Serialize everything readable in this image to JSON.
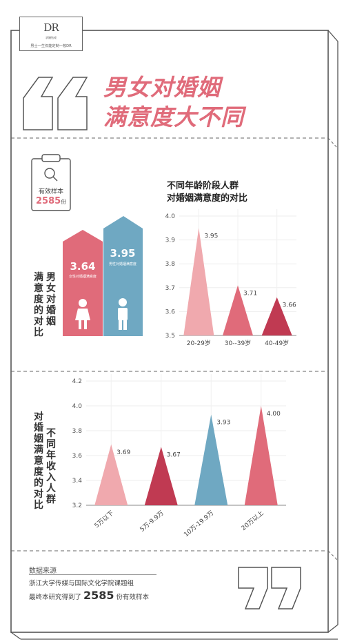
{
  "brand": {
    "mark": "DR",
    "sub": "求婚钻戒",
    "slogan": "男士一生仅能定制一枚DR"
  },
  "title": {
    "line1": "男女对婚姻",
    "line2": "满意度大不同"
  },
  "sample": {
    "label": "有效样本",
    "count": "2585",
    "unit": "份"
  },
  "gender_compare": {
    "vertical_label_1": "满意度的对比",
    "vertical_label_2": "男女对婚姻",
    "female": {
      "value": "3.64",
      "label": "女性对婚姻满意度",
      "color": "#e06b7a"
    },
    "male": {
      "value": "3.95",
      "label": "男性对婚姻满意度",
      "color": "#6fa8c2"
    }
  },
  "source": {
    "heading": "数据来源",
    "org": "浙江大学传媒与国际文化学院课题组",
    "count_prefix": "最终本研究得到了",
    "count_number": "2585",
    "count_suffix": "份有效样本"
  },
  "colors": {
    "accent": "#e06b7a",
    "light_pink": "#f0a9ae",
    "dark_red": "#c03a52",
    "blue": "#6fa8c2"
  },
  "chart_data": [
    {
      "type": "bar",
      "title_line1": "不同年龄阶段人群",
      "title_line2": "对婚姻满意度的对比",
      "categories": [
        "20-29岁",
        "30--39岁",
        "40-49岁"
      ],
      "values": [
        3.95,
        3.71,
        3.66
      ],
      "value_labels": [
        "3.95",
        "3.71",
        "3.66"
      ],
      "colors": [
        "#f0a9ae",
        "#e06b7a",
        "#c03a52"
      ],
      "yticks": [
        "4.0",
        "3.9",
        "3.8",
        "3.7",
        "3.6",
        "3.5"
      ],
      "ylim": [
        3.5,
        4.0
      ],
      "grid": true
    },
    {
      "type": "bar",
      "vertical_label_1": "对婚姻满意度的对比",
      "vertical_label_2": "不同年收入人群",
      "categories": [
        "5万以下",
        "5万-9.9万",
        "10万-19.9万",
        "20万以上"
      ],
      "values": [
        3.69,
        3.67,
        3.93,
        4.0
      ],
      "value_labels": [
        "3.69",
        "3.67",
        "3.93",
        "4.00"
      ],
      "colors": [
        "#f0a9ae",
        "#c03a52",
        "#6fa8c2",
        "#e06b7a"
      ],
      "yticks": [
        "4.2",
        "4.0",
        "3.8",
        "3.6",
        "3.4",
        "3.2"
      ],
      "ylim": [
        3.2,
        4.2
      ],
      "grid": true
    }
  ]
}
